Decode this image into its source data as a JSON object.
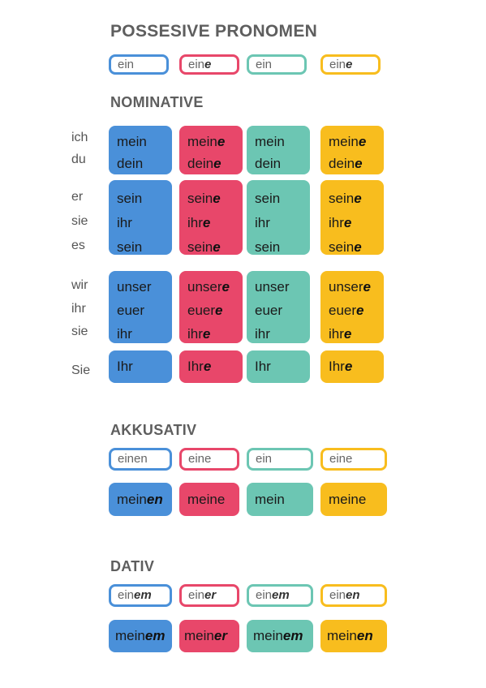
{
  "title": "POSSESIVE PRONOMEN",
  "article_row": [
    {
      "stem": "ein",
      "ending": ""
    },
    {
      "stem": "ein",
      "ending": "e"
    },
    {
      "stem": "ein",
      "ending": ""
    },
    {
      "stem": "ein",
      "ending": "e"
    }
  ],
  "colors": {
    "blue": "#4a90d9",
    "red": "#e8476a",
    "teal": "#6cc6b3",
    "yellow": "#f8bd1e"
  },
  "nominative": {
    "heading": "NOMINATIVE",
    "groups": [
      {
        "pronouns": [
          "ich",
          "du"
        ],
        "cells": [
          [
            [
              "mei",
              "n",
              ""
            ],
            [
              "dei",
              "n",
              ""
            ]
          ],
          [
            [
              "mein",
              "e"
            ],
            [
              "dein",
              "e"
            ]
          ],
          [
            [
              "mein",
              ""
            ],
            [
              "dein",
              ""
            ]
          ],
          [
            [
              "mein",
              "e"
            ],
            [
              "dein",
              "e"
            ]
          ]
        ]
      },
      {
        "pronouns": [
          "er",
          "sie",
          "es"
        ],
        "cells": [
          [
            [
              "sein",
              ""
            ],
            [
              "ihr",
              ""
            ],
            [
              "sein",
              ""
            ]
          ],
          [
            [
              "sein",
              "e"
            ],
            [
              "ihr",
              "e"
            ],
            [
              "sein",
              "e"
            ]
          ],
          [
            [
              "sein",
              ""
            ],
            [
              "ihr",
              ""
            ],
            [
              "sein",
              ""
            ]
          ],
          [
            [
              "sein",
              "e"
            ],
            [
              "ihr",
              "e"
            ],
            [
              "sein",
              "e"
            ]
          ]
        ]
      },
      {
        "pronouns": [
          "wir",
          "ihr",
          "sie"
        ],
        "cells": [
          [
            [
              "unser",
              ""
            ],
            [
              "euer",
              ""
            ],
            [
              "ihr",
              ""
            ]
          ],
          [
            [
              "unser",
              "e"
            ],
            [
              "euer",
              "e"
            ],
            [
              "ihr",
              "e"
            ]
          ],
          [
            [
              "unser",
              ""
            ],
            [
              "euer",
              ""
            ],
            [
              "ihr",
              ""
            ]
          ],
          [
            [
              "unser",
              "e"
            ],
            [
              "euer",
              "e"
            ],
            [
              "ihr",
              "e"
            ]
          ]
        ]
      },
      {
        "pronouns": [
          "Sie"
        ],
        "cells": [
          [
            [
              "Ihr",
              ""
            ]
          ],
          [
            [
              "Ihr",
              "e"
            ]
          ],
          [
            [
              "Ihr",
              ""
            ]
          ],
          [
            [
              "Ihr",
              "e"
            ]
          ]
        ]
      }
    ]
  },
  "akkusativ": {
    "heading": "AKKUSATIV",
    "articles": [
      [
        "einen",
        ""
      ],
      [
        "eine",
        ""
      ],
      [
        "ein",
        ""
      ],
      [
        "eine",
        ""
      ]
    ],
    "forms": [
      [
        "mein",
        "en"
      ],
      [
        "meine",
        ""
      ],
      [
        "mein",
        ""
      ],
      [
        "meine",
        ""
      ]
    ]
  },
  "dativ": {
    "heading": "DATIV",
    "articles": [
      [
        "ein",
        "em"
      ],
      [
        "ein",
        "er"
      ],
      [
        "ein",
        "em"
      ],
      [
        "ein",
        "en"
      ]
    ],
    "forms": [
      [
        "mein",
        "em"
      ],
      [
        "mein",
        "er"
      ],
      [
        "mein",
        "em"
      ],
      [
        "mein",
        "en"
      ]
    ]
  }
}
